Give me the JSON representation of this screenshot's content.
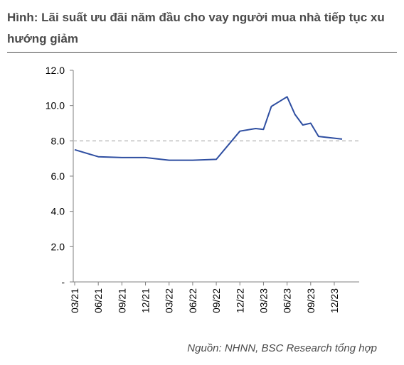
{
  "title": "Hình: Lãi suất ưu đãi năm đầu cho vay người mua nhà tiếp tục xu hướng giảm",
  "source": "Nguồn: NHNN, BSC Research tổng hợp",
  "chart_data": {
    "type": "line",
    "title": "Hình: Lãi suất ưu đãi năm đầu cho vay người mua nhà tiếp tục xu hướng giảm",
    "xlabel": "",
    "ylabel": "",
    "ylim": [
      0,
      12
    ],
    "y_ticks": [
      "-",
      "2.0",
      "4.0",
      "6.0",
      "8.0",
      "10.0",
      "12.0"
    ],
    "x_tick_labels": [
      "03/21",
      "06/21",
      "09/21",
      "12/21",
      "03/22",
      "06/22",
      "09/22",
      "12/22",
      "03/23",
      "06/23",
      "09/23",
      "12/23"
    ],
    "grid": false,
    "legend": "none",
    "reference_line": {
      "y": 8.0,
      "style": "dashed",
      "color": "#bfbfbf"
    },
    "series": [
      {
        "color": "#2e4ea1",
        "points": [
          [
            "03/21",
            7.5
          ],
          [
            "06/21",
            7.1
          ],
          [
            "09/21",
            7.05
          ],
          [
            "12/21",
            7.05
          ],
          [
            "03/22",
            6.9
          ],
          [
            "06/22",
            6.9
          ],
          [
            "09/22",
            6.95
          ],
          [
            "12/22",
            8.55
          ],
          [
            "02/23",
            8.7
          ],
          [
            "03/23",
            8.65
          ],
          [
            "04/23",
            9.95
          ],
          [
            "06/23",
            10.5
          ],
          [
            "07/23",
            9.5
          ],
          [
            "08/23",
            8.9
          ],
          [
            "09/23",
            9.0
          ],
          [
            "10/23",
            8.25
          ],
          [
            "12/23",
            8.15
          ],
          [
            "01/24",
            8.1
          ]
        ]
      }
    ]
  }
}
